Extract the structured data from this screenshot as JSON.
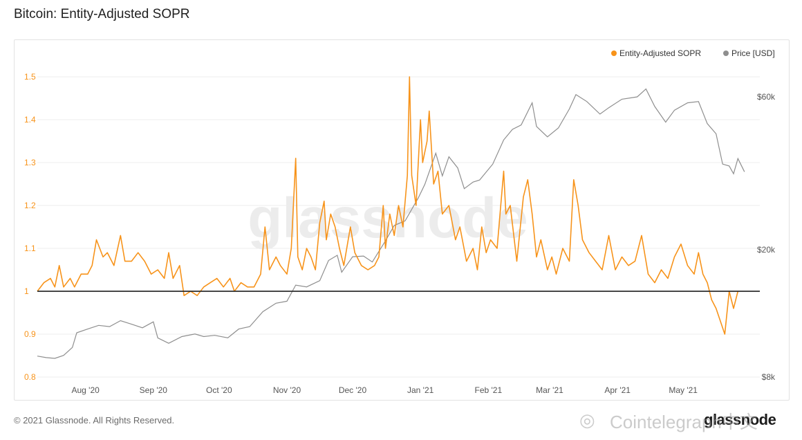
{
  "page": {
    "title": "Bitcoin: Entity-Adjusted SOPR",
    "footer": "© 2021 Glassnode. All Rights Reserved.",
    "brand": "glassnode",
    "watermark_bg": "glassnode",
    "watermark_corner": "Cointelegraph中文"
  },
  "colors": {
    "sopr": "#f7931a",
    "price": "#8e8e8e",
    "baseline": "#2b2b2b",
    "sopr_axis": "#f7931a",
    "price_axis": "#555555",
    "grid": "#ececec"
  },
  "chart_data": {
    "type": "line",
    "legend": [
      "Entity-Adjusted SOPR",
      "Price [USD]"
    ],
    "legend_position": "top-right",
    "x_range": [
      "2020-07-10",
      "2021-06-05"
    ],
    "x_ticks": [
      {
        "label": "Aug '20",
        "date": "2020-08-01"
      },
      {
        "label": "Sep '20",
        "date": "2020-09-01"
      },
      {
        "label": "Oct '20",
        "date": "2020-10-01"
      },
      {
        "label": "Nov '20",
        "date": "2020-11-01"
      },
      {
        "label": "Dec '20",
        "date": "2020-12-01"
      },
      {
        "label": "Jan '21",
        "date": "2021-01-01"
      },
      {
        "label": "Feb '21",
        "date": "2021-02-01"
      },
      {
        "label": "Mar '21",
        "date": "2021-03-01"
      },
      {
        "label": "Apr '21",
        "date": "2021-04-01"
      },
      {
        "label": "May '21",
        "date": "2021-05-01"
      }
    ],
    "y_left": {
      "min": 0.8,
      "max": 1.55,
      "ticks": [
        "0.8",
        "0.9",
        "1",
        "1.1",
        "1.2",
        "1.3",
        "1.4",
        "1.5"
      ]
    },
    "y_right": {
      "scale": "log",
      "min": 8000,
      "max": 60000,
      "ticks": [
        {
          "label": "$8k",
          "value": 8000
        },
        {
          "label": "$20k",
          "value": 20000
        },
        {
          "label": "$60k",
          "value": 60000
        }
      ]
    },
    "reference_line": 1,
    "grid": true,
    "series": [
      {
        "name": "Entity-Adjusted SOPR",
        "axis": "left",
        "points": [
          [
            "2020-07-10",
            1.0
          ],
          [
            "2020-07-13",
            1.02
          ],
          [
            "2020-07-16",
            1.03
          ],
          [
            "2020-07-18",
            1.01
          ],
          [
            "2020-07-20",
            1.06
          ],
          [
            "2020-07-22",
            1.01
          ],
          [
            "2020-07-25",
            1.03
          ],
          [
            "2020-07-27",
            1.01
          ],
          [
            "2020-07-30",
            1.04
          ],
          [
            "2020-08-02",
            1.04
          ],
          [
            "2020-08-04",
            1.06
          ],
          [
            "2020-08-06",
            1.12
          ],
          [
            "2020-08-09",
            1.08
          ],
          [
            "2020-08-11",
            1.09
          ],
          [
            "2020-08-14",
            1.06
          ],
          [
            "2020-08-17",
            1.13
          ],
          [
            "2020-08-19",
            1.07
          ],
          [
            "2020-08-22",
            1.07
          ],
          [
            "2020-08-25",
            1.09
          ],
          [
            "2020-08-28",
            1.07
          ],
          [
            "2020-08-31",
            1.04
          ],
          [
            "2020-09-03",
            1.05
          ],
          [
            "2020-09-06",
            1.03
          ],
          [
            "2020-09-08",
            1.09
          ],
          [
            "2020-09-10",
            1.03
          ],
          [
            "2020-09-13",
            1.06
          ],
          [
            "2020-09-15",
            0.99
          ],
          [
            "2020-09-18",
            1.0
          ],
          [
            "2020-09-21",
            0.99
          ],
          [
            "2020-09-24",
            1.01
          ],
          [
            "2020-09-27",
            1.02
          ],
          [
            "2020-09-30",
            1.03
          ],
          [
            "2020-10-03",
            1.01
          ],
          [
            "2020-10-06",
            1.03
          ],
          [
            "2020-10-08",
            1.0
          ],
          [
            "2020-10-11",
            1.02
          ],
          [
            "2020-10-14",
            1.01
          ],
          [
            "2020-10-17",
            1.01
          ],
          [
            "2020-10-20",
            1.04
          ],
          [
            "2020-10-22",
            1.15
          ],
          [
            "2020-10-24",
            1.05
          ],
          [
            "2020-10-27",
            1.08
          ],
          [
            "2020-10-29",
            1.06
          ],
          [
            "2020-11-01",
            1.04
          ],
          [
            "2020-11-03",
            1.1
          ],
          [
            "2020-11-05",
            1.31
          ],
          [
            "2020-11-06",
            1.08
          ],
          [
            "2020-11-08",
            1.05
          ],
          [
            "2020-11-10",
            1.1
          ],
          [
            "2020-11-12",
            1.08
          ],
          [
            "2020-11-14",
            1.05
          ],
          [
            "2020-11-16",
            1.16
          ],
          [
            "2020-11-18",
            1.21
          ],
          [
            "2020-11-19",
            1.12
          ],
          [
            "2020-11-21",
            1.18
          ],
          [
            "2020-11-23",
            1.15
          ],
          [
            "2020-11-25",
            1.1
          ],
          [
            "2020-11-27",
            1.06
          ],
          [
            "2020-11-30",
            1.15
          ],
          [
            "2020-12-02",
            1.09
          ],
          [
            "2020-12-05",
            1.06
          ],
          [
            "2020-12-08",
            1.05
          ],
          [
            "2020-12-11",
            1.06
          ],
          [
            "2020-12-13",
            1.08
          ],
          [
            "2020-12-15",
            1.2
          ],
          [
            "2020-12-16",
            1.1
          ],
          [
            "2020-12-18",
            1.18
          ],
          [
            "2020-12-20",
            1.13
          ],
          [
            "2020-12-22",
            1.2
          ],
          [
            "2020-12-24",
            1.15
          ],
          [
            "2020-12-26",
            1.27
          ],
          [
            "2020-12-27",
            1.5
          ],
          [
            "2020-12-28",
            1.27
          ],
          [
            "2020-12-30",
            1.2
          ],
          [
            "2021-01-01",
            1.4
          ],
          [
            "2021-01-02",
            1.3
          ],
          [
            "2021-01-04",
            1.35
          ],
          [
            "2021-01-05",
            1.42
          ],
          [
            "2021-01-07",
            1.25
          ],
          [
            "2021-01-09",
            1.28
          ],
          [
            "2021-01-11",
            1.18
          ],
          [
            "2021-01-14",
            1.2
          ],
          [
            "2021-01-17",
            1.12
          ],
          [
            "2021-01-19",
            1.15
          ],
          [
            "2021-01-22",
            1.07
          ],
          [
            "2021-01-25",
            1.1
          ],
          [
            "2021-01-27",
            1.05
          ],
          [
            "2021-01-29",
            1.15
          ],
          [
            "2021-01-31",
            1.09
          ],
          [
            "2021-02-02",
            1.12
          ],
          [
            "2021-02-05",
            1.1
          ],
          [
            "2021-02-08",
            1.28
          ],
          [
            "2021-02-09",
            1.18
          ],
          [
            "2021-02-11",
            1.2
          ],
          [
            "2021-02-14",
            1.07
          ],
          [
            "2021-02-17",
            1.22
          ],
          [
            "2021-02-19",
            1.26
          ],
          [
            "2021-02-21",
            1.18
          ],
          [
            "2021-02-23",
            1.08
          ],
          [
            "2021-02-25",
            1.12
          ],
          [
            "2021-02-28",
            1.05
          ],
          [
            "2021-03-02",
            1.08
          ],
          [
            "2021-03-04",
            1.04
          ],
          [
            "2021-03-07",
            1.1
          ],
          [
            "2021-03-10",
            1.07
          ],
          [
            "2021-03-12",
            1.26
          ],
          [
            "2021-03-14",
            1.2
          ],
          [
            "2021-03-16",
            1.12
          ],
          [
            "2021-03-19",
            1.09
          ],
          [
            "2021-03-22",
            1.07
          ],
          [
            "2021-03-25",
            1.05
          ],
          [
            "2021-03-28",
            1.13
          ],
          [
            "2021-03-31",
            1.05
          ],
          [
            "2021-04-03",
            1.08
          ],
          [
            "2021-04-06",
            1.06
          ],
          [
            "2021-04-09",
            1.07
          ],
          [
            "2021-04-12",
            1.13
          ],
          [
            "2021-04-15",
            1.04
          ],
          [
            "2021-04-18",
            1.02
          ],
          [
            "2021-04-21",
            1.05
          ],
          [
            "2021-04-24",
            1.03
          ],
          [
            "2021-04-27",
            1.08
          ],
          [
            "2021-04-30",
            1.11
          ],
          [
            "2021-05-03",
            1.06
          ],
          [
            "2021-05-06",
            1.04
          ],
          [
            "2021-05-08",
            1.09
          ],
          [
            "2021-05-10",
            1.04
          ],
          [
            "2021-05-12",
            1.02
          ],
          [
            "2021-05-14",
            0.98
          ],
          [
            "2021-05-16",
            0.96
          ],
          [
            "2021-05-18",
            0.93
          ],
          [
            "2021-05-20",
            0.9
          ],
          [
            "2021-05-22",
            1.0
          ],
          [
            "2021-05-24",
            0.96
          ],
          [
            "2021-05-26",
            1.0
          ]
        ]
      },
      {
        "name": "Price [USD]",
        "axis": "right",
        "points": [
          [
            "2020-07-10",
            9300
          ],
          [
            "2020-07-14",
            9200
          ],
          [
            "2020-07-18",
            9150
          ],
          [
            "2020-07-22",
            9350
          ],
          [
            "2020-07-26",
            9900
          ],
          [
            "2020-07-28",
            11000
          ],
          [
            "2020-08-02",
            11300
          ],
          [
            "2020-08-07",
            11600
          ],
          [
            "2020-08-12",
            11500
          ],
          [
            "2020-08-17",
            12000
          ],
          [
            "2020-08-22",
            11700
          ],
          [
            "2020-08-27",
            11400
          ],
          [
            "2020-09-01",
            11900
          ],
          [
            "2020-09-03",
            10600
          ],
          [
            "2020-09-08",
            10200
          ],
          [
            "2020-09-14",
            10700
          ],
          [
            "2020-09-20",
            10900
          ],
          [
            "2020-09-24",
            10700
          ],
          [
            "2020-09-29",
            10800
          ],
          [
            "2020-10-05",
            10600
          ],
          [
            "2020-10-10",
            11300
          ],
          [
            "2020-10-15",
            11500
          ],
          [
            "2020-10-21",
            12800
          ],
          [
            "2020-10-27",
            13600
          ],
          [
            "2020-11-01",
            13800
          ],
          [
            "2020-11-05",
            15500
          ],
          [
            "2020-11-10",
            15300
          ],
          [
            "2020-11-16",
            16000
          ],
          [
            "2020-11-20",
            18500
          ],
          [
            "2020-11-24",
            19200
          ],
          [
            "2020-11-26",
            17000
          ],
          [
            "2020-12-01",
            19000
          ],
          [
            "2020-12-06",
            19100
          ],
          [
            "2020-12-10",
            18300
          ],
          [
            "2020-12-16",
            21300
          ],
          [
            "2020-12-20",
            23800
          ],
          [
            "2020-12-25",
            24600
          ],
          [
            "2020-12-31",
            29000
          ],
          [
            "2021-01-03",
            32000
          ],
          [
            "2021-01-08",
            40000
          ],
          [
            "2021-01-11",
            34000
          ],
          [
            "2021-01-14",
            39000
          ],
          [
            "2021-01-18",
            36000
          ],
          [
            "2021-01-21",
            31000
          ],
          [
            "2021-01-25",
            32500
          ],
          [
            "2021-01-28",
            33000
          ],
          [
            "2021-02-03",
            37000
          ],
          [
            "2021-02-08",
            44000
          ],
          [
            "2021-02-12",
            47500
          ],
          [
            "2021-02-16",
            49000
          ],
          [
            "2021-02-21",
            57500
          ],
          [
            "2021-02-23",
            48500
          ],
          [
            "2021-02-28",
            45000
          ],
          [
            "2021-03-05",
            48000
          ],
          [
            "2021-03-10",
            55000
          ],
          [
            "2021-03-13",
            61000
          ],
          [
            "2021-03-18",
            58000
          ],
          [
            "2021-03-24",
            53000
          ],
          [
            "2021-03-28",
            55500
          ],
          [
            "2021-04-03",
            59000
          ],
          [
            "2021-04-10",
            60000
          ],
          [
            "2021-04-14",
            63500
          ],
          [
            "2021-04-18",
            56000
          ],
          [
            "2021-04-23",
            50000
          ],
          [
            "2021-04-27",
            54500
          ],
          [
            "2021-05-03",
            57500
          ],
          [
            "2021-05-08",
            58000
          ],
          [
            "2021-05-12",
            49500
          ],
          [
            "2021-05-16",
            46000
          ],
          [
            "2021-05-19",
            37000
          ],
          [
            "2021-05-22",
            36500
          ],
          [
            "2021-05-24",
            34500
          ],
          [
            "2021-05-26",
            38500
          ],
          [
            "2021-05-29",
            35000
          ]
        ]
      }
    ]
  }
}
